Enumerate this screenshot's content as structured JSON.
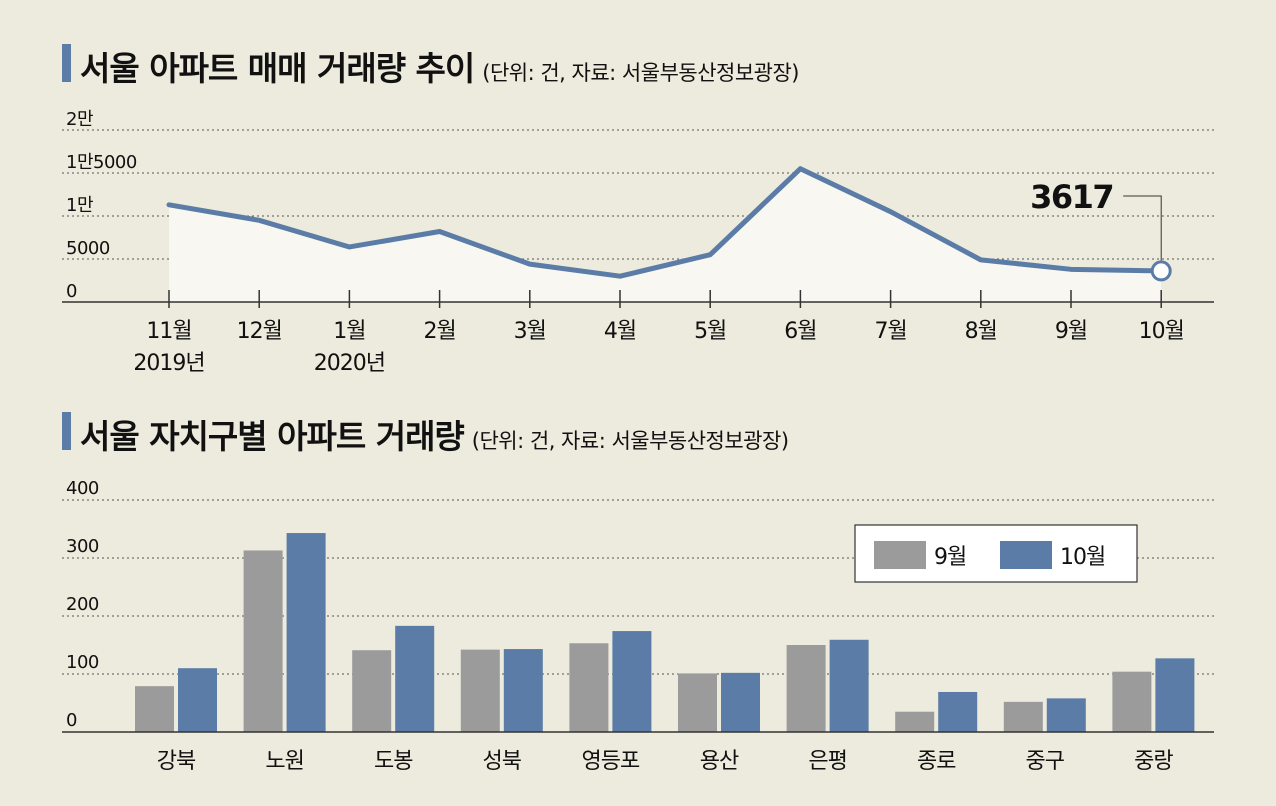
{
  "line_title": "서울 아파트 매매 거래량 추이",
  "line_unit": "(단위: 건, 자료: 서울부동산정보광장)",
  "bar_title": "서울 자치구별 아파트 거래량",
  "bar_unit": "(단위: 건, 자료: 서울부동산정보광장)",
  "colors": {
    "background": "#ecebdd",
    "line": "#5b7ca6",
    "area_fill": "#f8f7f1",
    "bar_sep": "#9b9b9b",
    "bar_oct": "#5b7ca6",
    "title_accent": "#5b7ca6"
  },
  "chart_data": [
    {
      "type": "line",
      "categories": [
        "11월",
        "12월",
        "1월",
        "2월",
        "3월",
        "4월",
        "5월",
        "6월",
        "7월",
        "8월",
        "9월",
        "10월"
      ],
      "category_sublabels": [
        "2019년",
        "",
        "2020년",
        "",
        "",
        "",
        "",
        "",
        "",
        "",
        "",
        ""
      ],
      "values": [
        11300,
        9500,
        6400,
        8200,
        4400,
        3000,
        5500,
        15500,
        10500,
        4900,
        3800,
        3617
      ],
      "ylim": [
        0,
        20000
      ],
      "yticks": [
        0,
        5000,
        10000,
        15000,
        20000
      ],
      "ytick_labels": [
        "0",
        "5000",
        "1만",
        "1만5000",
        "2만"
      ],
      "annotation": {
        "index": 11,
        "text": "3617"
      },
      "grid": true,
      "area_fill": true
    },
    {
      "type": "bar",
      "categories": [
        "강북",
        "노원",
        "도봉",
        "성북",
        "영등포",
        "용산",
        "은평",
        "종로",
        "중구",
        "중랑"
      ],
      "series": [
        {
          "name": "9월",
          "values": [
            79,
            313,
            141,
            142,
            153,
            101,
            150,
            35,
            52,
            104
          ]
        },
        {
          "name": "10월",
          "values": [
            110,
            343,
            183,
            143,
            174,
            102,
            159,
            69,
            58,
            127
          ]
        }
      ],
      "ylim": [
        0,
        400
      ],
      "yticks": [
        0,
        100,
        200,
        300,
        400
      ],
      "ytick_labels": [
        "0",
        "100",
        "200",
        "300",
        "400"
      ],
      "legend": "top-right",
      "grid": true
    }
  ]
}
